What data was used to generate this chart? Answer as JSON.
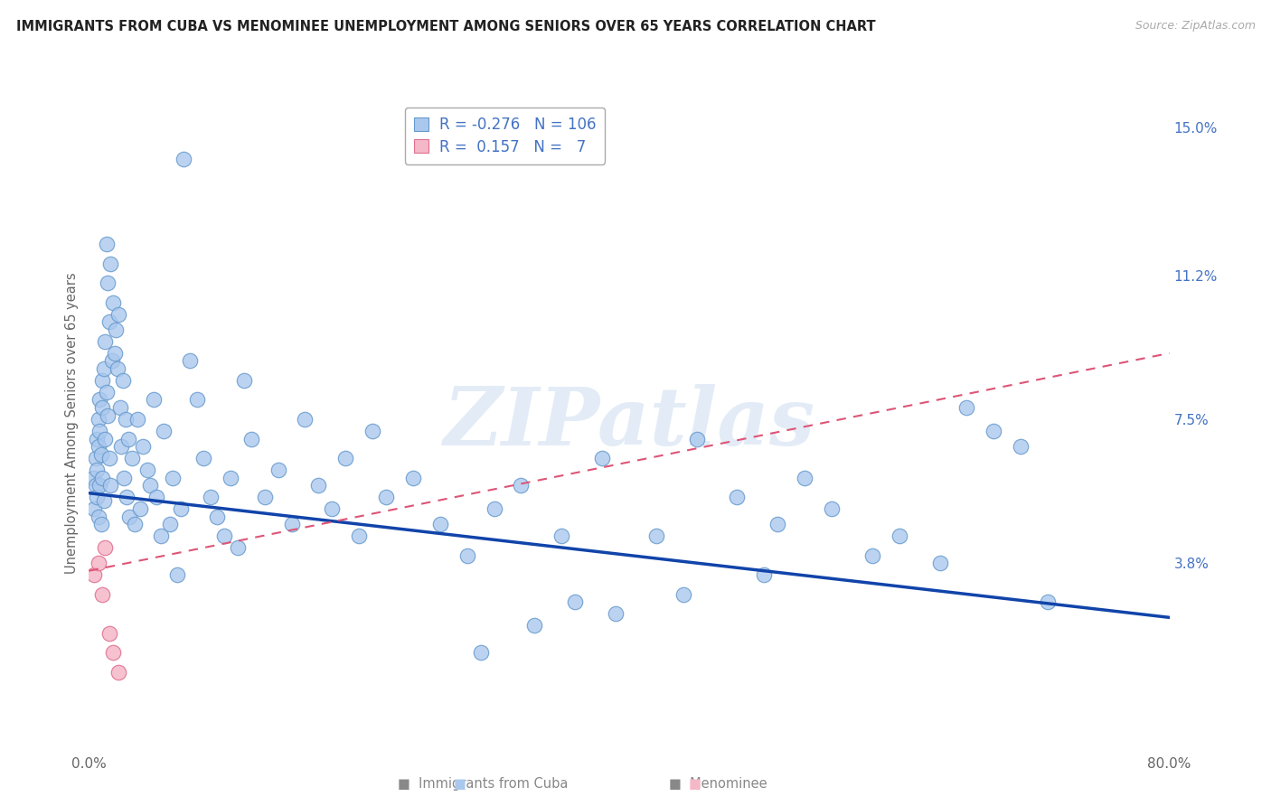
{
  "title": "IMMIGRANTS FROM CUBA VS MENOMINEE UNEMPLOYMENT AMONG SENIORS OVER 65 YEARS CORRELATION CHART",
  "source": "Source: ZipAtlas.com",
  "ylabel": "Unemployment Among Seniors over 65 years",
  "xlim": [
    0.0,
    0.8
  ],
  "ylim": [
    -0.01,
    0.158
  ],
  "right_yticks": [
    0.038,
    0.075,
    0.112,
    0.15
  ],
  "right_yticklabels": [
    "3.8%",
    "7.5%",
    "11.2%",
    "15.0%"
  ],
  "blue_r": -0.276,
  "blue_n": 106,
  "pink_r": 0.157,
  "pink_n": 7,
  "cuba_color": "#aac8ee",
  "cuba_edge": "#6699cc",
  "menominee_color": "#f5b8c8",
  "menominee_edge": "#e07090",
  "trend_blue_color": "#1144aa",
  "trend_pink_color": "#dd5577",
  "trend_blue_start_y": 0.056,
  "trend_blue_end_y": 0.024,
  "trend_pink_start_y": 0.036,
  "trend_pink_end_y": 0.092,
  "watermark_color": "#ccddf0",
  "cuba_x": [
    0.003,
    0.004,
    0.005,
    0.005,
    0.006,
    0.006,
    0.006,
    0.007,
    0.007,
    0.007,
    0.008,
    0.008,
    0.008,
    0.009,
    0.009,
    0.01,
    0.01,
    0.01,
    0.011,
    0.011,
    0.012,
    0.012,
    0.013,
    0.013,
    0.014,
    0.014,
    0.015,
    0.015,
    0.016,
    0.016,
    0.017,
    0.018,
    0.019,
    0.02,
    0.021,
    0.022,
    0.023,
    0.024,
    0.025,
    0.026,
    0.027,
    0.028,
    0.029,
    0.03,
    0.032,
    0.034,
    0.036,
    0.038,
    0.04,
    0.043,
    0.045,
    0.048,
    0.05,
    0.053,
    0.055,
    0.06,
    0.062,
    0.065,
    0.068,
    0.07,
    0.075,
    0.08,
    0.085,
    0.09,
    0.095,
    0.1,
    0.105,
    0.11,
    0.115,
    0.12,
    0.13,
    0.14,
    0.15,
    0.16,
    0.17,
    0.18,
    0.19,
    0.2,
    0.21,
    0.22,
    0.24,
    0.26,
    0.28,
    0.3,
    0.32,
    0.35,
    0.38,
    0.42,
    0.45,
    0.48,
    0.51,
    0.53,
    0.55,
    0.58,
    0.6,
    0.63,
    0.65,
    0.67,
    0.69,
    0.71,
    0.5,
    0.44,
    0.39,
    0.36,
    0.33,
    0.29
  ],
  "cuba_y": [
    0.06,
    0.052,
    0.058,
    0.065,
    0.07,
    0.062,
    0.055,
    0.075,
    0.05,
    0.068,
    0.08,
    0.058,
    0.072,
    0.066,
    0.048,
    0.085,
    0.06,
    0.078,
    0.088,
    0.054,
    0.095,
    0.07,
    0.12,
    0.082,
    0.11,
    0.076,
    0.1,
    0.065,
    0.115,
    0.058,
    0.09,
    0.105,
    0.092,
    0.098,
    0.088,
    0.102,
    0.078,
    0.068,
    0.085,
    0.06,
    0.075,
    0.055,
    0.07,
    0.05,
    0.065,
    0.048,
    0.075,
    0.052,
    0.068,
    0.062,
    0.058,
    0.08,
    0.055,
    0.045,
    0.072,
    0.048,
    0.06,
    0.035,
    0.052,
    0.142,
    0.09,
    0.08,
    0.065,
    0.055,
    0.05,
    0.045,
    0.06,
    0.042,
    0.085,
    0.07,
    0.055,
    0.062,
    0.048,
    0.075,
    0.058,
    0.052,
    0.065,
    0.045,
    0.072,
    0.055,
    0.06,
    0.048,
    0.04,
    0.052,
    0.058,
    0.045,
    0.065,
    0.045,
    0.07,
    0.055,
    0.048,
    0.06,
    0.052,
    0.04,
    0.045,
    0.038,
    0.078,
    0.072,
    0.068,
    0.028,
    0.035,
    0.03,
    0.025,
    0.028,
    0.022,
    0.015
  ],
  "menominee_x": [
    0.004,
    0.007,
    0.01,
    0.012,
    0.015,
    0.018,
    0.022
  ],
  "menominee_y": [
    0.035,
    0.038,
    0.03,
    0.042,
    0.02,
    0.015,
    0.01
  ]
}
